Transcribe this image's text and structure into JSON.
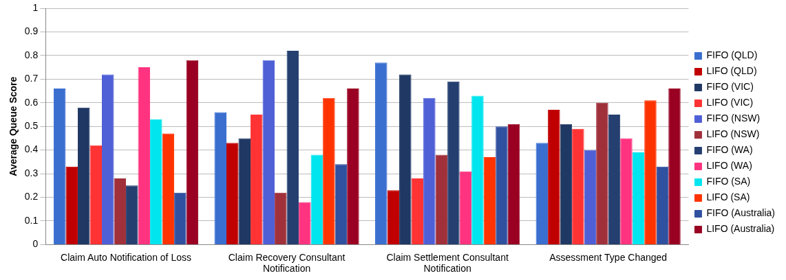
{
  "chart_data": {
    "type": "bar",
    "ylabel": "Average Queue Score",
    "categories": [
      "Claim Auto Notification of Loss",
      "Claim Recovery Consultant Notification",
      "Claim Settlement Consultant Notification",
      "Assessment Type Changed"
    ],
    "series": [
      {
        "name": "FIFO (QLD)",
        "color": "#3a6fd0",
        "values": [
          0.66,
          0.56,
          0.77,
          0.43
        ]
      },
      {
        "name": "LIFO (QLD)",
        "color": "#c00000",
        "values": [
          0.33,
          0.43,
          0.23,
          0.57
        ]
      },
      {
        "name": "FIFO (VIC)",
        "color": "#1f3864",
        "values": [
          0.58,
          0.45,
          0.72,
          0.51
        ]
      },
      {
        "name": "LIFO (VIC)",
        "color": "#ff3333",
        "values": [
          0.42,
          0.55,
          0.28,
          0.49
        ]
      },
      {
        "name": "FIFO (NSW)",
        "color": "#4f5fd6",
        "values": [
          0.72,
          0.78,
          0.62,
          0.4
        ]
      },
      {
        "name": "LIFO (NSW)",
        "color": "#a0303a",
        "values": [
          0.28,
          0.22,
          0.38,
          0.6
        ]
      },
      {
        "name": "FIFO (WA)",
        "color": "#243f70",
        "values": [
          0.25,
          0.82,
          0.69,
          0.55
        ]
      },
      {
        "name": "LIFO (WA)",
        "color": "#ff3380",
        "values": [
          0.75,
          0.18,
          0.31,
          0.45
        ]
      },
      {
        "name": "FIFO (SA)",
        "color": "#00e5ee",
        "values": [
          0.53,
          0.38,
          0.63,
          0.39
        ]
      },
      {
        "name": "LIFO (SA)",
        "color": "#ff3300",
        "values": [
          0.47,
          0.62,
          0.37,
          0.61
        ]
      },
      {
        "name": "FIFO (Australia)",
        "color": "#3050a0",
        "values": [
          0.22,
          0.34,
          0.5,
          0.33
        ]
      },
      {
        "name": "LIFO (Australia)",
        "color": "#990022",
        "values": [
          0.78,
          0.66,
          0.51,
          0.66
        ]
      }
    ],
    "ylim": [
      0,
      1
    ],
    "yticks": [
      0,
      0.1,
      0.2,
      0.3,
      0.4,
      0.5,
      0.6,
      0.7,
      0.8,
      0.9,
      1
    ],
    "grid": "y",
    "legend": "right"
  }
}
